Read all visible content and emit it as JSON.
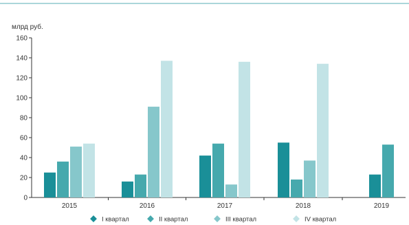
{
  "chart_data": {
    "type": "bar",
    "title": "",
    "ylabel": "млрд руб.",
    "xlabel": "",
    "categories": [
      "2015",
      "2016",
      "2017",
      "2018",
      "2019"
    ],
    "yticks": [
      0,
      20,
      40,
      60,
      80,
      100,
      120,
      140,
      160
    ],
    "ylim": [
      0,
      160
    ],
    "grid": false,
    "legend_position": "bottom",
    "series": [
      {
        "name": "I квартал",
        "color": "#1a8f98",
        "values": [
          25,
          16,
          42,
          55,
          23
        ]
      },
      {
        "name": "II квартал",
        "color": "#46a9ad",
        "values": [
          36,
          23,
          54,
          18,
          53
        ]
      },
      {
        "name": "III квартал",
        "color": "#86c7cb",
        "values": [
          51,
          91,
          13,
          37,
          null
        ]
      },
      {
        "name": "IV квартал",
        "color": "#c2e3e6",
        "values": [
          54,
          137,
          136,
          134,
          null
        ]
      }
    ]
  },
  "colors": {
    "top_rule": "#8fc9ce",
    "axis": "#333333"
  }
}
